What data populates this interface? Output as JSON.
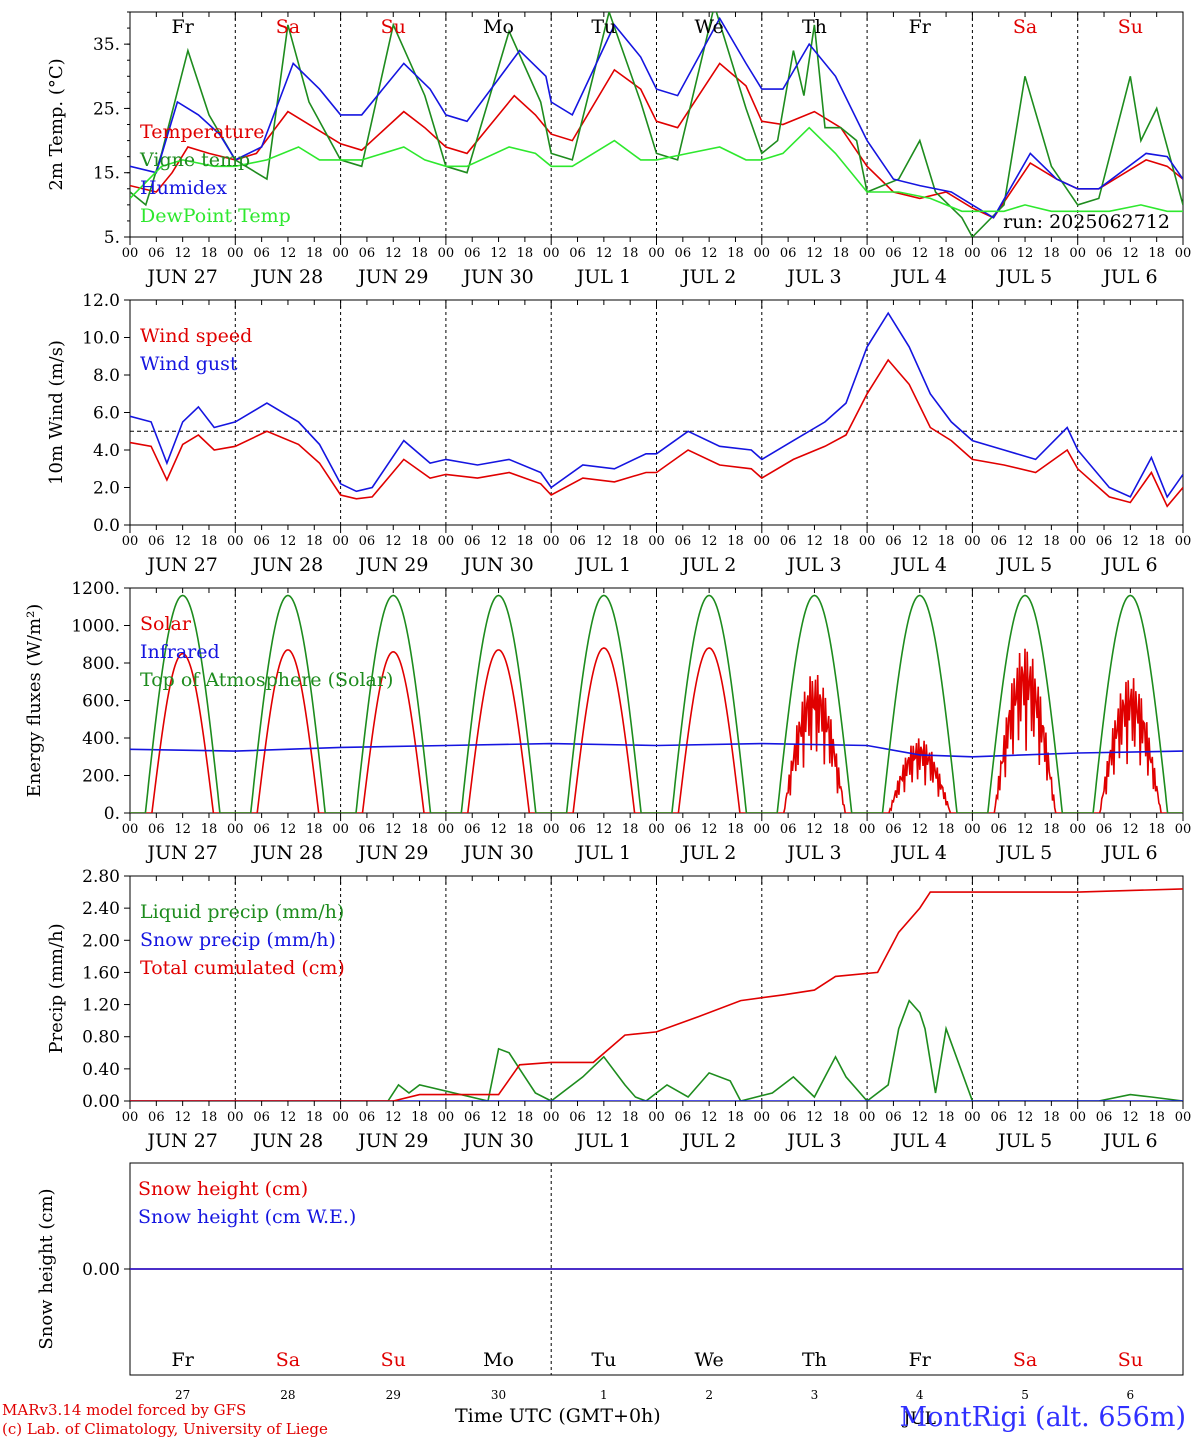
{
  "colors": {
    "red": "#e00000",
    "green": "#1e8c1e",
    "blue": "#1515e0",
    "lightgreen": "#2ee82e",
    "black": "#000000"
  },
  "run_label": "run: 2025062712",
  "weekdays": [
    {
      "label": "Fr",
      "color": "black"
    },
    {
      "label": "Sa",
      "color": "red"
    },
    {
      "label": "Su",
      "color": "red"
    },
    {
      "label": "Mo",
      "color": "black"
    },
    {
      "label": "Tu",
      "color": "black"
    },
    {
      "label": "We",
      "color": "black"
    },
    {
      "label": "Th",
      "color": "black"
    },
    {
      "label": "Fr",
      "color": "black"
    },
    {
      "label": "Sa",
      "color": "red"
    },
    {
      "label": "Su",
      "color": "red"
    }
  ],
  "date_labels": [
    "JUN 27",
    "JUN 28",
    "JUN 29",
    "JUN 30",
    "JUL  1",
    "JUL  2",
    "JUL  3",
    "JUL  4",
    "JUL  5",
    "JUL  6"
  ],
  "hour_ticks": [
    "00",
    "06",
    "12",
    "18"
  ],
  "hour_tick_end": "00",
  "bottom_day_numbers": [
    "27",
    "28",
    "29",
    "30",
    "1",
    "2",
    "3",
    "4",
    "5",
    "6"
  ],
  "bottom_month": "JUL",
  "footer": {
    "credit1": "MARv3.14 model forced by GFS",
    "credit2": "(c) Lab. of Climatology, University of Liege",
    "xaxis": "Time UTC (GMT+0h)",
    "title": "MontRigi (alt. 656m)"
  },
  "chart_data": [
    {
      "type": "line",
      "ylabel": "2m Temp. (°C)",
      "ylim": [
        5,
        40
      ],
      "yticks": [
        "5.",
        "15.",
        "25.",
        "35."
      ],
      "ytick_values": [
        5,
        15,
        25,
        35
      ],
      "x_unit": "days since JUN 27 00 UTC",
      "series": [
        {
          "name": "Temperature",
          "color": "red",
          "x": [
            0,
            0.25,
            0.4,
            0.55,
            0.75,
            1,
            1.2,
            1.5,
            1.75,
            2,
            2.2,
            2.6,
            2.8,
            3,
            3.2,
            3.65,
            3.85,
            4,
            4.2,
            4.6,
            4.85,
            5,
            5.2,
            5.6,
            5.85,
            6,
            6.2,
            6.5,
            6.75,
            7,
            7.25,
            7.5,
            7.75,
            8,
            8.2,
            8.55,
            8.8,
            9,
            9.2,
            9.65,
            9.85,
            10
          ],
          "y": [
            13,
            12,
            15,
            19,
            18,
            17,
            18,
            24.5,
            22,
            19.5,
            18.5,
            24.5,
            22,
            19,
            18,
            27,
            24,
            21,
            20,
            31,
            28,
            23,
            22,
            32,
            28.5,
            23,
            22.5,
            24.5,
            22,
            16,
            12,
            11,
            12,
            9.5,
            8,
            16.5,
            14,
            12.5,
            12.5,
            17,
            16,
            14
          ]
        },
        {
          "name": "Vigne temp",
          "color": "green",
          "x": [
            0,
            0.15,
            0.3,
            0.55,
            0.75,
            1,
            1.3,
            1.5,
            1.7,
            2,
            2.2,
            2.5,
            2.8,
            3,
            3.2,
            3.6,
            3.9,
            4,
            4.2,
            4.55,
            4.85,
            5,
            5.2,
            5.55,
            5.85,
            6,
            6.15,
            6.3,
            6.4,
            6.5,
            6.6,
            6.75,
            6.9,
            7,
            7.3,
            7.5,
            7.65,
            7.9,
            8,
            8.3,
            8.5,
            8.75,
            9,
            9.2,
            9.5,
            9.6,
            9.75,
            9.9,
            10
          ],
          "y": [
            12,
            10,
            18,
            34,
            24,
            17,
            14,
            38,
            26,
            17,
            16,
            38,
            27,
            16,
            15,
            37,
            26,
            18,
            17,
            40,
            26,
            18,
            17,
            41,
            25,
            18,
            20,
            34,
            27,
            38,
            22,
            22,
            20,
            12,
            14,
            20,
            12,
            8,
            5,
            10,
            30,
            16,
            10,
            11,
            30,
            20,
            25,
            16,
            10
          ]
        },
        {
          "name": "Humidex",
          "color": "blue",
          "x": [
            0,
            0.25,
            0.45,
            0.65,
            0.85,
            1,
            1.25,
            1.55,
            1.8,
            2,
            2.2,
            2.6,
            2.85,
            3,
            3.2,
            3.7,
            3.95,
            4,
            4.2,
            4.6,
            4.85,
            5,
            5.2,
            5.6,
            5.85,
            6,
            6.2,
            6.45,
            6.7,
            7,
            7.25,
            7.5,
            7.8,
            8,
            8.2,
            8.55,
            8.8,
            9,
            9.2,
            9.65,
            9.85,
            10
          ],
          "y": [
            16,
            15,
            26,
            24,
            21,
            17,
            19,
            32,
            28,
            24,
            24,
            32,
            28,
            24,
            23,
            34,
            30,
            26,
            24,
            38,
            33,
            28,
            27,
            39,
            32,
            28,
            28,
            35,
            30,
            20,
            14,
            13,
            12,
            10,
            8,
            18,
            14,
            12.5,
            12.5,
            18,
            17.5,
            14
          ]
        },
        {
          "name": "DewPoint Temp",
          "color": "lightgreen",
          "x": [
            0,
            0.3,
            0.5,
            0.8,
            1,
            1.3,
            1.6,
            1.8,
            2,
            2.2,
            2.6,
            2.8,
            3,
            3.2,
            3.6,
            3.85,
            4,
            4.2,
            4.6,
            4.85,
            5,
            5.3,
            5.6,
            5.85,
            6,
            6.2,
            6.45,
            6.7,
            7,
            7.3,
            7.6,
            7.9,
            8,
            8.3,
            8.5,
            8.75,
            9,
            9.3,
            9.6,
            9.85,
            10
          ],
          "y": [
            11,
            16,
            17,
            16,
            16,
            17,
            19,
            17,
            17,
            17,
            19,
            17,
            16,
            16,
            19,
            18,
            16,
            16,
            20,
            17,
            17,
            18,
            19,
            17,
            17,
            18,
            22,
            18,
            12,
            12,
            11,
            9,
            9,
            9,
            10,
            9,
            9,
            9,
            10,
            9,
            9
          ]
        }
      ]
    },
    {
      "type": "line",
      "ylabel": "10m Wind (m/s)",
      "ylim": [
        0,
        12
      ],
      "yticks": [
        "0.0",
        "2.0",
        "4.0",
        "6.0",
        "8.0",
        "10.0",
        "12.0"
      ],
      "ytick_values": [
        0,
        2,
        4,
        6,
        8,
        10,
        12
      ],
      "reference_line": 5,
      "series": [
        {
          "name": "Wind speed",
          "color": "red",
          "x": [
            0,
            0.2,
            0.35,
            0.5,
            0.65,
            0.8,
            1,
            1.3,
            1.6,
            1.8,
            2,
            2.15,
            2.3,
            2.6,
            2.85,
            3,
            3.3,
            3.6,
            3.9,
            4,
            4.3,
            4.6,
            4.9,
            5,
            5.3,
            5.6,
            5.9,
            6,
            6.3,
            6.6,
            6.8,
            7,
            7.2,
            7.4,
            7.6,
            7.8,
            8,
            8.3,
            8.6,
            8.9,
            9,
            9.3,
            9.5,
            9.7,
            9.85,
            10
          ],
          "y": [
            4.4,
            4.2,
            2.4,
            4.3,
            4.8,
            4,
            4.2,
            5,
            4.3,
            3.3,
            1.6,
            1.4,
            1.5,
            3.5,
            2.5,
            2.7,
            2.5,
            2.8,
            2.2,
            1.6,
            2.5,
            2.3,
            2.8,
            2.8,
            4,
            3.2,
            3,
            2.5,
            3.5,
            4.2,
            4.8,
            7,
            8.8,
            7.5,
            5.2,
            4.5,
            3.5,
            3.2,
            2.8,
            4,
            3,
            1.5,
            1.2,
            2.8,
            1,
            2
          ]
        },
        {
          "name": "Wind gust",
          "color": "blue",
          "x": [
            0,
            0.2,
            0.35,
            0.5,
            0.65,
            0.8,
            1,
            1.3,
            1.6,
            1.8,
            2,
            2.15,
            2.3,
            2.6,
            2.85,
            3,
            3.3,
            3.6,
            3.9,
            4,
            4.3,
            4.6,
            4.9,
            5,
            5.3,
            5.6,
            5.9,
            6,
            6.3,
            6.6,
            6.8,
            7,
            7.2,
            7.4,
            7.6,
            7.8,
            8,
            8.3,
            8.6,
            8.9,
            9,
            9.3,
            9.5,
            9.7,
            9.85,
            10
          ],
          "y": [
            5.8,
            5.5,
            3.3,
            5.5,
            6.3,
            5.2,
            5.5,
            6.5,
            5.5,
            4.3,
            2.2,
            1.8,
            2,
            4.5,
            3.3,
            3.5,
            3.2,
            3.5,
            2.8,
            2,
            3.2,
            3,
            3.8,
            3.8,
            5,
            4.2,
            4,
            3.5,
            4.5,
            5.5,
            6.5,
            9.5,
            11.3,
            9.5,
            7,
            5.5,
            4.5,
            4,
            3.5,
            5.2,
            4,
            2,
            1.5,
            3.6,
            1.5,
            2.7
          ]
        }
      ]
    },
    {
      "type": "line",
      "ylabel": "Energy fluxes (W/m²)",
      "ylim": [
        0,
        1200
      ],
      "yticks": [
        "0.",
        "200.",
        "400.",
        "600.",
        "800.",
        "1000.",
        "1200."
      ],
      "ytick_values": [
        0,
        200,
        400,
        600,
        800,
        1000,
        1200
      ],
      "series": [
        {
          "name": "Solar",
          "color": "red",
          "peaks": [
            {
              "day": 0,
              "peak": 850
            },
            {
              "day": 1,
              "peak": 870
            },
            {
              "day": 2,
              "peak": 860
            },
            {
              "day": 3,
              "peak": 870
            },
            {
              "day": 4,
              "peak": 880
            },
            {
              "day": 5,
              "peak": 880
            },
            {
              "day": 6,
              "peak": 750,
              "noisy": true
            },
            {
              "day": 7,
              "peak": 400,
              "noisy": true
            },
            {
              "day": 8,
              "peak": 890,
              "noisy": true
            },
            {
              "day": 9,
              "peak": 730,
              "noisy": true
            }
          ]
        },
        {
          "name": "Infrared",
          "color": "blue",
          "x": [
            0,
            1,
            2,
            3,
            4,
            5,
            6,
            7,
            7.5,
            8,
            9,
            10
          ],
          "y": [
            340,
            330,
            350,
            360,
            370,
            360,
            370,
            360,
            310,
            300,
            320,
            330
          ]
        },
        {
          "name": "Top of Atmosphere (Solar)",
          "color": "green",
          "daily_peak": 1160
        }
      ]
    },
    {
      "type": "line",
      "ylabel": "Precip (mm/h)",
      "ylim": [
        0,
        2.8
      ],
      "yticks": [
        "0.00",
        "0.40",
        "0.80",
        "1.20",
        "1.60",
        "2.00",
        "2.40",
        "2.80"
      ],
      "ytick_values": [
        0,
        0.4,
        0.8,
        1.2,
        1.6,
        2,
        2.4,
        2.8
      ],
      "series": [
        {
          "name": "Liquid precip (mm/h)",
          "color": "green",
          "x": [
            0,
            2.45,
            2.55,
            2.65,
            2.75,
            3.4,
            3.5,
            3.6,
            3.7,
            3.85,
            4,
            4.3,
            4.5,
            4.7,
            4.8,
            4.9,
            5.1,
            5.3,
            5.5,
            5.7,
            5.8,
            6.1,
            6.3,
            6.5,
            6.7,
            6.8,
            7,
            7.2,
            7.3,
            7.4,
            7.5,
            7.55,
            7.65,
            7.75,
            8,
            9.2,
            9.5,
            9.7,
            10
          ],
          "y": [
            0,
            0,
            0.2,
            0.1,
            0.2,
            0,
            0.65,
            0.6,
            0.4,
            0.1,
            0,
            0.3,
            0.55,
            0.2,
            0.05,
            0,
            0.2,
            0.05,
            0.35,
            0.25,
            0,
            0.1,
            0.3,
            0.05,
            0.55,
            0.3,
            0,
            0.2,
            0.9,
            1.25,
            1.1,
            0.9,
            0.1,
            0.9,
            0,
            0,
            0.08,
            0.05,
            0
          ]
        },
        {
          "name": "Snow precip (mm/h)",
          "color": "blue",
          "x": [
            0,
            10
          ],
          "y": [
            0,
            0
          ]
        },
        {
          "name": "Total cumulated (cm)",
          "color": "red",
          "x": [
            0,
            2.5,
            2.75,
            3.5,
            3.7,
            4,
            4.4,
            4.7,
            5,
            5.4,
            5.8,
            6.2,
            6.5,
            6.7,
            7.1,
            7.3,
            7.5,
            7.6,
            8,
            9,
            10
          ],
          "y": [
            0,
            0,
            0.08,
            0.08,
            0.45,
            0.48,
            0.48,
            0.82,
            0.86,
            1.05,
            1.25,
            1.32,
            1.38,
            1.55,
            1.6,
            2.1,
            2.4,
            2.6,
            2.6,
            2.6,
            2.64
          ]
        }
      ]
    },
    {
      "type": "line",
      "ylabel": "Snow height (cm)",
      "ylim": [
        -1,
        1
      ],
      "yticks": [
        "0.00"
      ],
      "ytick_values": [
        0
      ],
      "series": [
        {
          "name": "Snow height (cm)",
          "color": "red",
          "x": [
            0,
            10
          ],
          "y": [
            0,
            0
          ]
        },
        {
          "name": "Snow height (cm W.E.)",
          "color": "blue",
          "x": [
            0,
            10
          ],
          "y": [
            0,
            0
          ]
        }
      ]
    }
  ]
}
